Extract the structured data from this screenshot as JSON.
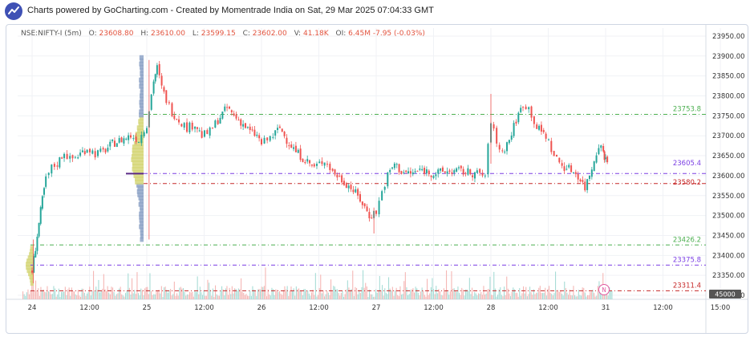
{
  "banner": {
    "text": "Charts powered by GoCharting.com - Created by Momentrade India on Sat, 29 Mar 2025 07:04:33 GMT",
    "logo_icon": "trend-line-logo-icon"
  },
  "legend": {
    "symbol": "NSE:NIFTY-I (5m)",
    "o_label": "O:",
    "o": "23608.80",
    "h_label": "H:",
    "h": "23610.00",
    "l_label": "L:",
    "l": "23599.15",
    "c_label": "C:",
    "c": "23602.00",
    "v_label": "V:",
    "v": "41.18K",
    "oi_label": "OI:",
    "oi": "6.45M",
    "change": "-7.95",
    "change_pct": "(-0.03%)"
  },
  "colors": {
    "up": "#26a69a",
    "down": "#ef5350",
    "green_level": "#4caf50",
    "purple_level": "#7b3fe4",
    "red_level": "#c62828",
    "profile_blue": "#8fa4c8",
    "profile_yellow": "#d6d77a"
  },
  "chart_data": {
    "type": "candlestick",
    "ylim": [
      23290,
      23970
    ],
    "y_ticks": [
      "23950.00",
      "23900.00",
      "23850.00",
      "23800.00",
      "23750.00",
      "23700.00",
      "23650.00",
      "23600.00",
      "23550.00",
      "23500.00",
      "23450.00",
      "23400.00",
      "23350.00",
      "23300.00"
    ],
    "x_ticks": [
      "24",
      "12:00",
      "25",
      "12:00",
      "26",
      "12:00",
      "27",
      "12:00",
      "28",
      "12:00",
      "31",
      "12:00",
      "15:00"
    ],
    "volume_axis_label": "45000",
    "levels": [
      {
        "label": "23753.8",
        "value": 23753.8,
        "color": "green"
      },
      {
        "label": "23605.4",
        "value": 23605.4,
        "color": "purple"
      },
      {
        "label": "23580.2",
        "value": 23580.2,
        "color": "red"
      },
      {
        "label": "23426.2",
        "value": 23426.2,
        "color": "green"
      },
      {
        "label": "23375.8",
        "value": 23375.8,
        "color": "purple"
      },
      {
        "label": "23311.4",
        "value": 23311.4,
        "color": "red"
      }
    ],
    "close_path": [
      {
        "x": 24.0,
        "y": 23360
      },
      {
        "x": 24.03,
        "y": 23420
      },
      {
        "x": 24.06,
        "y": 23480
      },
      {
        "x": 24.09,
        "y": 23540
      },
      {
        "x": 24.12,
        "y": 23590
      },
      {
        "x": 24.17,
        "y": 23620
      },
      {
        "x": 24.22,
        "y": 23630
      },
      {
        "x": 24.28,
        "y": 23660
      },
      {
        "x": 24.33,
        "y": 23640
      },
      {
        "x": 24.4,
        "y": 23650
      },
      {
        "x": 24.48,
        "y": 23670
      },
      {
        "x": 24.55,
        "y": 23655
      },
      {
        "x": 24.62,
        "y": 23660
      },
      {
        "x": 24.7,
        "y": 23680
      },
      {
        "x": 24.78,
        "y": 23690
      },
      {
        "x": 24.86,
        "y": 23700
      },
      {
        "x": 24.93,
        "y": 23690
      },
      {
        "x": 25.0,
        "y": 23730
      },
      {
        "x": 25.06,
        "y": 23840
      },
      {
        "x": 25.09,
        "y": 23870
      },
      {
        "x": 25.13,
        "y": 23820
      },
      {
        "x": 25.17,
        "y": 23790
      },
      {
        "x": 25.22,
        "y": 23760
      },
      {
        "x": 25.28,
        "y": 23740
      },
      {
        "x": 25.35,
        "y": 23720
      },
      {
        "x": 25.42,
        "y": 23730
      },
      {
        "x": 25.48,
        "y": 23700
      },
      {
        "x": 25.55,
        "y": 23710
      },
      {
        "x": 25.62,
        "y": 23740
      },
      {
        "x": 25.7,
        "y": 23770
      },
      {
        "x": 25.76,
        "y": 23750
      },
      {
        "x": 25.82,
        "y": 23735
      },
      {
        "x": 25.9,
        "y": 23710
      },
      {
        "x": 25.96,
        "y": 23700
      },
      {
        "x": 26.0,
        "y": 23680
      },
      {
        "x": 26.05,
        "y": 23690
      },
      {
        "x": 26.1,
        "y": 23700
      },
      {
        "x": 26.16,
        "y": 23720
      },
      {
        "x": 26.22,
        "y": 23690
      },
      {
        "x": 26.3,
        "y": 23660
      },
      {
        "x": 26.38,
        "y": 23640
      },
      {
        "x": 26.46,
        "y": 23620
      },
      {
        "x": 26.55,
        "y": 23640
      },
      {
        "x": 26.62,
        "y": 23610
      },
      {
        "x": 26.7,
        "y": 23590
      },
      {
        "x": 26.78,
        "y": 23570
      },
      {
        "x": 26.86,
        "y": 23540
      },
      {
        "x": 26.94,
        "y": 23500
      },
      {
        "x": 27.0,
        "y": 23510
      },
      {
        "x": 27.05,
        "y": 23560
      },
      {
        "x": 27.1,
        "y": 23600
      },
      {
        "x": 27.16,
        "y": 23630
      },
      {
        "x": 27.22,
        "y": 23610
      },
      {
        "x": 27.3,
        "y": 23605
      },
      {
        "x": 27.4,
        "y": 23615
      },
      {
        "x": 27.5,
        "y": 23605
      },
      {
        "x": 27.6,
        "y": 23610
      },
      {
        "x": 27.7,
        "y": 23612
      },
      {
        "x": 27.8,
        "y": 23608
      },
      {
        "x": 27.88,
        "y": 23605
      },
      {
        "x": 27.95,
        "y": 23600
      },
      {
        "x": 28.0,
        "y": 23740
      },
      {
        "x": 28.05,
        "y": 23680
      },
      {
        "x": 28.1,
        "y": 23660
      },
      {
        "x": 28.16,
        "y": 23690
      },
      {
        "x": 28.22,
        "y": 23740
      },
      {
        "x": 28.28,
        "y": 23780
      },
      {
        "x": 28.33,
        "y": 23770
      },
      {
        "x": 28.4,
        "y": 23720
      },
      {
        "x": 28.48,
        "y": 23700
      },
      {
        "x": 28.55,
        "y": 23650
      },
      {
        "x": 28.62,
        "y": 23625
      },
      {
        "x": 28.7,
        "y": 23615
      },
      {
        "x": 28.76,
        "y": 23600
      },
      {
        "x": 28.82,
        "y": 23570
      },
      {
        "x": 28.88,
        "y": 23620
      },
      {
        "x": 28.94,
        "y": 23680
      },
      {
        "x": 28.98,
        "y": 23660
      },
      {
        "x": 29.0,
        "y": 23640
      },
      {
        "x": 29.03,
        "y": 23630
      }
    ]
  },
  "event_marker": {
    "label": "N"
  }
}
